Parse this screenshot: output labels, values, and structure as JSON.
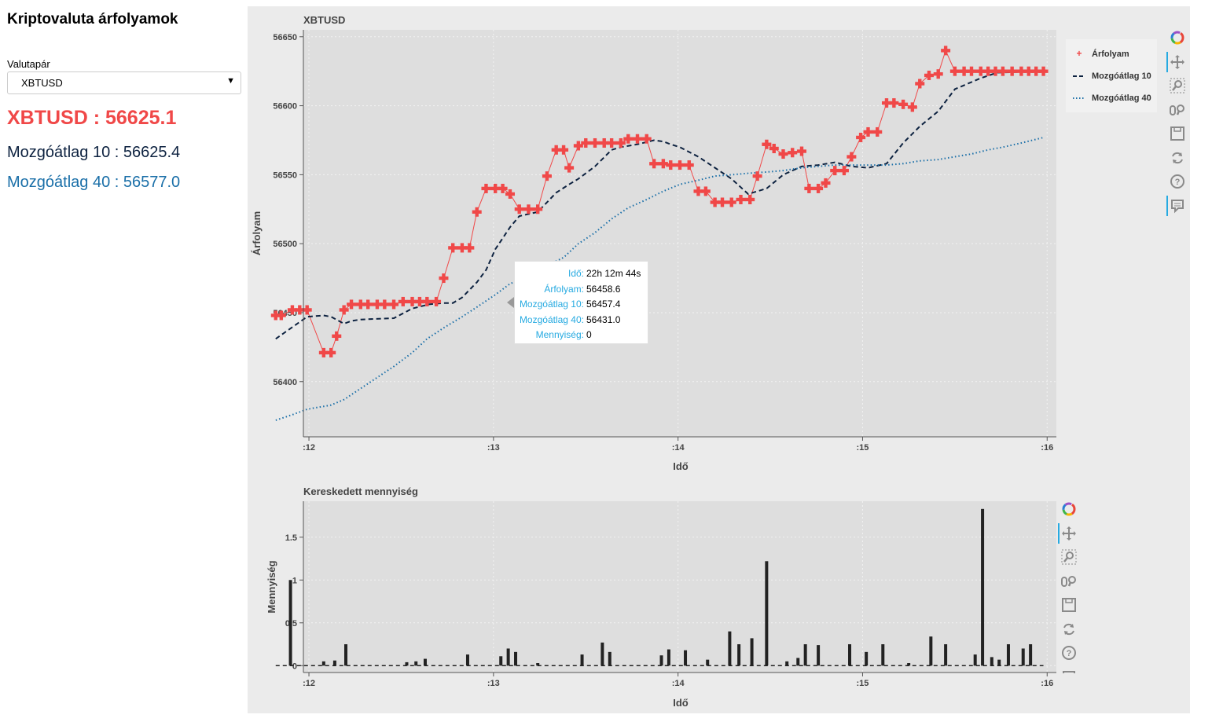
{
  "sidebar": {
    "title": "Kriptovaluta árfolyamok",
    "select_label": "Valutapár",
    "select_value": "XBTUSD",
    "price_text": "XBTUSD : 56625.1",
    "ma10_text": "Mozgóátlag 10 : 56625.4",
    "ma40_text": "Mozgóátlag 40 : 56577.0"
  },
  "colors": {
    "price": "#f04848",
    "ma10": "#0d2240",
    "ma40": "#1a6fa8",
    "bars": "#222222",
    "plot_bg": "#dedede",
    "panel_bg": "#ebebeb"
  },
  "tooltip": {
    "rows": [
      {
        "key": "Idő:",
        "value": "22h 12m 44s"
      },
      {
        "key": "Árfolyam:",
        "value": "56458.6"
      },
      {
        "key": "Mozgóátlag 10:",
        "value": "56457.4"
      },
      {
        "key": "Mozgóátlag 40:",
        "value": "56431.0"
      },
      {
        "key": "Mennyiség:",
        "value": "0"
      }
    ]
  },
  "toolbar": {
    "icons": [
      "bokeh-logo-icon",
      "pan-icon",
      "box-zoom-icon",
      "wheel-zoom-icon",
      "save-icon",
      "reset-icon",
      "help-icon",
      "hover-icon"
    ]
  },
  "chart_data": [
    {
      "type": "line",
      "title": "XBTUSD",
      "xlabel": "Idő",
      "ylabel": "Árfolyam",
      "x_ticks": [
        ":12",
        ":13",
        ":14",
        ":15",
        ":16"
      ],
      "y_ticks": [
        "56400",
        "56450",
        "56500",
        "56550",
        "56600",
        "56650"
      ],
      "xlim": [
        -0.03,
        4.05
      ],
      "ylim": [
        56360,
        56655
      ],
      "legend_position": "top-right",
      "grid": true,
      "series": [
        {
          "name": "Árfolyam",
          "x": [
            -0.18,
            -0.15,
            -0.09,
            -0.05,
            -0.01,
            0.08,
            0.12,
            0.15,
            0.19,
            0.23,
            0.28,
            0.32,
            0.37,
            0.41,
            0.46,
            0.51,
            0.56,
            0.6,
            0.64,
            0.69,
            0.73,
            0.78,
            0.83,
            0.87,
            0.91,
            0.96,
            1.01,
            1.05,
            1.09,
            1.14,
            1.19,
            1.24,
            1.29,
            1.34,
            1.38,
            1.41,
            1.46,
            1.5,
            1.55,
            1.6,
            1.64,
            1.69,
            1.73,
            1.78,
            1.83,
            1.87,
            1.92,
            1.96,
            2.01,
            2.06,
            2.11,
            2.15,
            2.2,
            2.24,
            2.29,
            2.34,
            2.39,
            2.43,
            2.48,
            2.52,
            2.57,
            2.62,
            2.67,
            2.71,
            2.76,
            2.8,
            2.85,
            2.9,
            2.94,
            2.99,
            3.03,
            3.08,
            3.13,
            3.17,
            3.22,
            3.27,
            3.31,
            3.36,
            3.41,
            3.45,
            3.5,
            3.55,
            3.59,
            3.64,
            3.68,
            3.72,
            3.76,
            3.81,
            3.86,
            3.9,
            3.94,
            3.98
          ],
          "y": [
            56448,
            56448,
            56452,
            56452,
            56452,
            56421,
            56421,
            56433,
            56452,
            56456,
            56456,
            56456,
            56456,
            56456,
            56456,
            56458,
            56458,
            56458,
            56458,
            56458,
            56475,
            56497,
            56497,
            56497,
            56523,
            56540,
            56540,
            56540,
            56536,
            56525,
            56525,
            56525,
            56549,
            56568,
            56568,
            56555,
            56571,
            56573,
            56573,
            56573,
            56573,
            56573,
            56576,
            56576,
            56576,
            56558,
            56558,
            56557,
            56557,
            56557,
            56538,
            56538,
            56530,
            56530,
            56530,
            56532,
            56532,
            56549,
            56572,
            56569,
            56565,
            56566,
            56567,
            56540,
            56540,
            56544,
            56553,
            56553,
            56563,
            56577,
            56581,
            56581,
            56602,
            56602,
            56601,
            56599,
            56616,
            56622,
            56623,
            56640,
            56625,
            56625,
            56625,
            56625,
            56625,
            56625,
            56625,
            56625,
            56625,
            56625,
            56625,
            56625
          ]
        },
        {
          "name": "Mozgóátlag 10",
          "x": [
            -0.18,
            -0.01,
            0.08,
            0.12,
            0.19,
            0.23,
            0.28,
            0.46,
            0.56,
            0.65,
            0.73,
            0.78,
            0.83,
            0.91,
            0.96,
            1.01,
            1.09,
            1.14,
            1.24,
            1.34,
            1.41,
            1.46,
            1.55,
            1.64,
            1.69,
            1.78,
            1.87,
            1.92,
            1.96,
            2.01,
            2.11,
            2.29,
            2.38,
            2.48,
            2.57,
            2.67,
            2.76,
            2.85,
            2.94,
            3.03,
            3.13,
            3.22,
            3.31,
            3.41,
            3.5,
            3.64,
            3.73,
            3.98
          ],
          "y": [
            56431,
            56447,
            56448,
            56447,
            56442,
            56444,
            56445,
            56446,
            56453,
            56456,
            56457,
            56457,
            56461,
            56472,
            56481,
            56496,
            56512,
            56520,
            56523,
            56537,
            56543,
            56547,
            56556,
            56568,
            56570,
            56572,
            56575,
            56574,
            56572,
            56570,
            56563,
            56547,
            56536,
            56540,
            56550,
            56556,
            56557,
            56559,
            56556,
            56555,
            56558,
            56573,
            56585,
            56596,
            56612,
            56620,
            56624,
            56625
          ]
        },
        {
          "name": "Mozgóátlag 40",
          "x": [
            -0.18,
            -0.09,
            -0.01,
            0.12,
            0.19,
            0.28,
            0.37,
            0.46,
            0.56,
            0.64,
            0.73,
            0.83,
            0.91,
            1.01,
            1.09,
            1.19,
            1.29,
            1.38,
            1.46,
            1.55,
            1.64,
            1.73,
            1.83,
            1.92,
            2.01,
            2.11,
            2.2,
            2.29,
            2.38,
            2.48,
            2.57,
            2.67,
            2.76,
            2.85,
            2.94,
            3.03,
            3.13,
            3.22,
            3.31,
            3.41,
            3.5,
            3.59,
            3.68,
            3.76,
            3.86,
            3.98
          ],
          "y": [
            56372,
            56376,
            56380,
            56383,
            56387,
            56395,
            56403,
            56411,
            56421,
            56431,
            56439,
            56447,
            56454,
            56463,
            56471,
            56476,
            56484,
            56490,
            56500,
            56508,
            56518,
            56526,
            56532,
            56538,
            56543,
            56546,
            56549,
            56550,
            56551,
            56552,
            56553,
            56555,
            56556,
            56557,
            56557,
            56557,
            56557,
            56558,
            56560,
            56561,
            56563,
            56565,
            56568,
            56570,
            56573,
            56577
          ]
        }
      ]
    },
    {
      "type": "bar",
      "title": "Kereskedett mennyiség",
      "xlabel": "Idő",
      "ylabel": "Mennyiség",
      "x_ticks": [
        ":12",
        ":13",
        ":14",
        ":15",
        ":16"
      ],
      "y_ticks": [
        "0",
        "0.5",
        "1",
        "1.5"
      ],
      "xlim": [
        -0.03,
        4.05
      ],
      "ylim": [
        -0.08,
        1.92
      ],
      "grid": true,
      "x": [
        -0.1,
        0.08,
        0.14,
        0.2,
        0.53,
        0.58,
        0.63,
        0.86,
        1.04,
        1.08,
        1.12,
        1.24,
        1.48,
        1.59,
        1.63,
        1.91,
        1.95,
        2.04,
        2.16,
        2.28,
        2.33,
        2.4,
        2.48,
        2.59,
        2.65,
        2.69,
        2.76,
        2.93,
        3.02,
        3.11,
        3.25,
        3.37,
        3.45,
        3.61,
        3.65,
        3.7,
        3.74,
        3.79,
        3.87,
        3.91
      ],
      "values": [
        1.0,
        0.05,
        0.06,
        0.25,
        0.04,
        0.05,
        0.08,
        0.13,
        0.11,
        0.2,
        0.16,
        0.03,
        0.13,
        0.27,
        0.16,
        0.12,
        0.19,
        0.18,
        0.07,
        0.4,
        0.25,
        0.32,
        1.22,
        0.05,
        0.09,
        0.25,
        0.24,
        0.25,
        0.16,
        0.25,
        0.03,
        0.34,
        0.25,
        0.13,
        1.83,
        0.1,
        0.07,
        0.25,
        0.2,
        0.25
      ]
    }
  ]
}
